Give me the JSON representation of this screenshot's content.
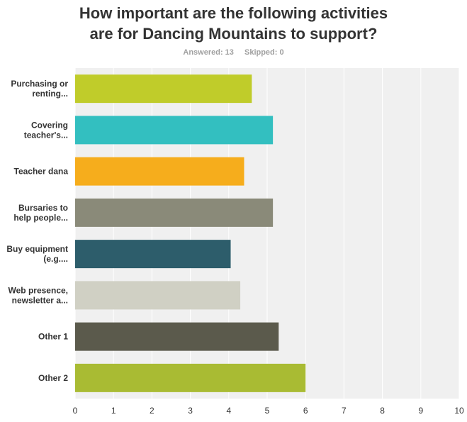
{
  "title_line1": "How important are the following activities",
  "title_line2": "are for Dancing Mountains to support?",
  "answered_label": "Answered: 13",
  "skipped_label": "Skipped: 0",
  "chart_data": {
    "type": "bar",
    "orientation": "horizontal",
    "categories": [
      [
        "Purchasing or",
        "renting..."
      ],
      [
        "Covering",
        "teacher's..."
      ],
      [
        "Teacher dana"
      ],
      [
        "Bursaries to",
        "help people..."
      ],
      [
        "Buy equipment",
        "(e.g...."
      ],
      [
        "Web presence,",
        "newsletter a..."
      ],
      [
        "Other 1"
      ],
      [
        "Other 2"
      ]
    ],
    "values": [
      4.6,
      5.15,
      4.4,
      5.15,
      4.05,
      4.3,
      5.3,
      6.0
    ],
    "colors": [
      "#c0cc2a",
      "#33bfc0",
      "#f6ad1c",
      "#8a8a79",
      "#2d5d6b",
      "#d0d0c4",
      "#5b5a4c",
      "#a9bb33"
    ],
    "xlim": [
      0,
      10
    ],
    "ticks": [
      "0",
      "1",
      "2",
      "3",
      "4",
      "5",
      "6",
      "7",
      "8",
      "9",
      "10"
    ],
    "grid": true,
    "plot_background": "#f0f0f0"
  }
}
